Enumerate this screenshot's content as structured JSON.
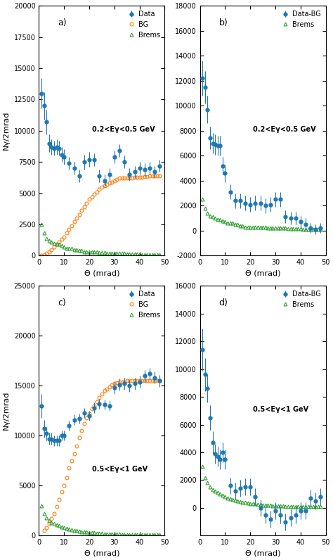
{
  "chart_data": [
    {
      "type": "scatter",
      "x_label": "Θ (mrad)",
      "y_label": "Nγ/2mrad",
      "xlim": [
        0,
        50
      ],
      "xticks": [
        0,
        10,
        20,
        30,
        40,
        50
      ],
      "ylim": [
        0,
        20000
      ],
      "yticks": [
        0,
        2500,
        5000,
        7500,
        10000,
        12500,
        15000,
        17500,
        20000
      ],
      "legend": "upper right",
      "annotations": [
        "a)",
        "0.2<Eγ<0.5 GeV"
      ],
      "series": [
        {
          "name": "Data",
          "marker": "filled circle",
          "x": [
            1,
            2,
            3,
            4,
            5,
            6,
            7,
            8,
            9,
            10,
            12,
            14,
            16,
            18,
            20,
            22,
            24,
            26,
            28,
            30,
            32,
            34,
            36,
            38,
            40,
            42,
            44,
            46,
            48
          ],
          "values": [
            13000,
            12000,
            10700,
            9000,
            8700,
            8600,
            8700,
            8600,
            8100,
            7900,
            7400,
            7000,
            6400,
            7500,
            7700,
            7700,
            6400,
            6000,
            6500,
            7900,
            8400,
            7500,
            6500,
            6700,
            7000,
            6900,
            7000,
            6700,
            7200
          ],
          "errors": [
            1200,
            1100,
            1000,
            700,
            600,
            600,
            600,
            600,
            600,
            600,
            500,
            500,
            500,
            600,
            600,
            500,
            500,
            500,
            500,
            500,
            500,
            500,
            500,
            500,
            500,
            500,
            500,
            500,
            500
          ]
        },
        {
          "name": "BG",
          "marker": "open circle",
          "x": [
            1,
            2,
            3,
            4,
            5,
            6,
            7,
            8,
            9,
            10,
            11,
            12,
            13,
            14,
            15,
            16,
            17,
            18,
            19,
            20,
            21,
            22,
            23,
            24,
            25,
            26,
            27,
            28,
            29,
            30,
            31,
            32,
            33,
            34,
            35,
            36,
            37,
            38,
            39,
            40,
            41,
            42,
            43,
            44,
            45,
            46,
            47,
            48
          ],
          "values": [
            50,
            100,
            200,
            300,
            500,
            700,
            900,
            1100,
            1300,
            1500,
            1800,
            2100,
            2400,
            2700,
            3000,
            3300,
            3600,
            3900,
            4200,
            4500,
            4700,
            4900,
            5100,
            5300,
            5500,
            5600,
            5700,
            5800,
            5900,
            6000,
            6100,
            6200,
            6200,
            6200,
            6200,
            6200,
            6200,
            6300,
            6300,
            6300,
            6300,
            6350,
            6350,
            6400,
            6400,
            6400,
            6400,
            6400
          ]
        },
        {
          "name": "Brems",
          "marker": "open triangle",
          "x": [
            1,
            2,
            3,
            4,
            5,
            6,
            7,
            8,
            9,
            10,
            11,
            12,
            13,
            14,
            15,
            16,
            17,
            18,
            19,
            20,
            21,
            22,
            23,
            24,
            25,
            26,
            27,
            28,
            29,
            30,
            31,
            32,
            33,
            34,
            35,
            36,
            37,
            38,
            39,
            40,
            41,
            42,
            43,
            44,
            45,
            46,
            47,
            48
          ],
          "values": [
            2500,
            1800,
            1400,
            1200,
            1100,
            1000,
            900,
            900,
            800,
            700,
            600,
            600,
            600,
            500,
            500,
            400,
            400,
            300,
            300,
            300,
            300,
            300,
            300,
            250,
            250,
            250,
            200,
            200,
            200,
            200,
            200,
            200,
            200,
            200,
            150,
            150,
            150,
            150,
            150,
            150,
            100,
            100,
            100,
            100,
            100,
            100,
            100,
            100
          ]
        }
      ]
    },
    {
      "type": "scatter",
      "x_label": "Θ (mrad)",
      "xlim": [
        0,
        50
      ],
      "xticks": [
        0,
        10,
        20,
        30,
        40,
        50
      ],
      "ylim": [
        -2000,
        18000
      ],
      "yticks": [
        -2000,
        0,
        2000,
        4000,
        6000,
        8000,
        10000,
        12000,
        14000,
        16000,
        18000
      ],
      "legend": "upper right",
      "annotations": [
        "b)",
        "0.2<Eγ<0.5 GeV"
      ],
      "series": [
        {
          "name": "Data-BG",
          "marker": "filled circle",
          "x": [
            1,
            2,
            3,
            4,
            5,
            6,
            7,
            8,
            9,
            10,
            12,
            14,
            16,
            18,
            20,
            22,
            24,
            26,
            28,
            30,
            32,
            34,
            36,
            38,
            40,
            42,
            44,
            46,
            48
          ],
          "values": [
            12200,
            11500,
            9700,
            7400,
            7000,
            6900,
            6800,
            6800,
            5200,
            4600,
            3100,
            2400,
            2400,
            2200,
            2100,
            2200,
            2200,
            2000,
            2100,
            2500,
            2500,
            1100,
            1000,
            1000,
            700,
            500,
            200,
            100,
            200
          ],
          "errors": [
            1400,
            1300,
            1100,
            900,
            800,
            800,
            800,
            800,
            700,
            700,
            600,
            600,
            600,
            600,
            600,
            600,
            600,
            600,
            600,
            600,
            600,
            500,
            500,
            500,
            500,
            500,
            400,
            400,
            400
          ]
        },
        {
          "name": "Brems",
          "marker": "open triangle",
          "x": [
            1,
            2,
            3,
            4,
            5,
            6,
            7,
            8,
            9,
            10,
            11,
            12,
            13,
            14,
            15,
            16,
            17,
            18,
            19,
            20,
            21,
            22,
            23,
            24,
            25,
            26,
            27,
            28,
            29,
            30,
            31,
            32,
            33,
            34,
            35,
            36,
            37,
            38,
            39,
            40,
            41,
            42,
            43,
            44,
            45,
            46,
            47,
            48
          ],
          "values": [
            2500,
            1800,
            1400,
            1200,
            1100,
            1000,
            900,
            900,
            800,
            700,
            600,
            600,
            600,
            500,
            500,
            400,
            400,
            300,
            300,
            300,
            300,
            300,
            300,
            250,
            250,
            250,
            200,
            200,
            200,
            200,
            200,
            200,
            200,
            200,
            150,
            150,
            150,
            150,
            150,
            150,
            100,
            100,
            100,
            100,
            100,
            100,
            100,
            100
          ]
        }
      ]
    },
    {
      "type": "scatter",
      "x_label": "Θ (mrad)",
      "y_label": "Nγ/2mrad",
      "xlim": [
        0,
        50
      ],
      "xticks": [
        0,
        10,
        20,
        30,
        40,
        50
      ],
      "ylim": [
        0,
        25000
      ],
      "yticks": [
        0,
        5000,
        10000,
        15000,
        20000,
        25000
      ],
      "legend": "upper right",
      "annotations": [
        "c)",
        "0.5<Eγ<1 GeV"
      ],
      "series": [
        {
          "name": "Data",
          "marker": "filled circle",
          "x": [
            1,
            2,
            3,
            4,
            5,
            6,
            7,
            8,
            9,
            10,
            12,
            14,
            16,
            18,
            20,
            22,
            24,
            26,
            28,
            30,
            32,
            34,
            36,
            38,
            40,
            42,
            44,
            46,
            48
          ],
          "values": [
            13000,
            10700,
            10200,
            9700,
            9700,
            9500,
            9500,
            9500,
            10000,
            10000,
            11000,
            11600,
            11700,
            12300,
            12000,
            12800,
            13200,
            13100,
            13000,
            14800,
            15100,
            15200,
            15000,
            15200,
            15400,
            16000,
            16200,
            15800,
            15500
          ],
          "errors": [
            1200,
            900,
            700,
            600,
            600,
            500,
            500,
            500,
            500,
            500,
            500,
            500,
            500,
            500,
            500,
            500,
            500,
            500,
            500,
            600,
            600,
            600,
            600,
            600,
            600,
            600,
            600,
            600,
            600
          ]
        },
        {
          "name": "BG",
          "marker": "open circle",
          "x": [
            2,
            3,
            4,
            5,
            6,
            7,
            8,
            9,
            10,
            11,
            12,
            13,
            14,
            15,
            16,
            17,
            18,
            19,
            20,
            21,
            22,
            23,
            24,
            25,
            26,
            27,
            28,
            29,
            30,
            31,
            32,
            33,
            34,
            35,
            36,
            37,
            38,
            39,
            40,
            41,
            42,
            43,
            44,
            45,
            46,
            47,
            48
          ],
          "values": [
            500,
            800,
            1200,
            1700,
            2200,
            2900,
            3600,
            4400,
            5000,
            5800,
            6800,
            7500,
            8200,
            9000,
            9800,
            10500,
            11200,
            11800,
            12200,
            12700,
            13000,
            13400,
            13800,
            14200,
            14500,
            14700,
            14900,
            15100,
            15200,
            15300,
            15400,
            15400,
            15400,
            15500,
            15500,
            15500,
            15500,
            15500,
            15500,
            15500,
            15500,
            15500,
            15500,
            15500,
            15500,
            15500,
            15500
          ]
        },
        {
          "name": "Brems",
          "marker": "open triangle",
          "x": [
            1,
            2,
            3,
            4,
            5,
            6,
            7,
            8,
            9,
            10,
            11,
            12,
            13,
            14,
            15,
            16,
            17,
            18,
            19,
            20,
            21,
            22,
            23,
            24,
            25,
            26,
            27,
            28,
            29,
            30,
            31,
            32,
            33,
            34,
            35,
            36,
            37,
            38,
            39,
            40,
            41,
            42,
            43,
            44,
            45,
            46,
            47,
            48
          ],
          "values": [
            3000,
            2200,
            1800,
            1500,
            1300,
            1200,
            1100,
            1000,
            900,
            800,
            700,
            650,
            600,
            550,
            500,
            450,
            400,
            380,
            350,
            320,
            300,
            280,
            260,
            240,
            220,
            200,
            190,
            180,
            170,
            160,
            150,
            140,
            130,
            120,
            110,
            100,
            100,
            90,
            90,
            90,
            80,
            80,
            80,
            80,
            80,
            80,
            80,
            80
          ]
        }
      ]
    },
    {
      "type": "scatter",
      "x_label": "Θ (mrad)",
      "xlim": [
        0,
        50
      ],
      "xticks": [
        0,
        10,
        20,
        30,
        40,
        50
      ],
      "ylim": [
        -2000,
        16000
      ],
      "yticks": [
        0,
        2000,
        4000,
        6000,
        8000,
        10000,
        12000,
        14000,
        16000
      ],
      "legend": "upper right",
      "annotations": [
        "d)",
        "0.5<Eγ<1 GeV"
      ],
      "series": [
        {
          "name": "Data-BG",
          "marker": "filled circle",
          "x": [
            1,
            2,
            3,
            4,
            5,
            6,
            7,
            8,
            9,
            10,
            12,
            14,
            16,
            18,
            20,
            22,
            24,
            26,
            28,
            30,
            32,
            34,
            36,
            38,
            40,
            42,
            44,
            46,
            48
          ],
          "values": [
            11400,
            9600,
            8600,
            6500,
            4700,
            3900,
            3700,
            3500,
            4000,
            3500,
            1600,
            1200,
            1400,
            1500,
            1500,
            800,
            0,
            -500,
            -800,
            -200,
            -500,
            -1000,
            -700,
            -500,
            -200,
            -200,
            700,
            500,
            800
          ],
          "errors": [
            1500,
            1200,
            1000,
            900,
            800,
            700,
            700,
            700,
            700,
            700,
            600,
            600,
            600,
            600,
            600,
            600,
            600,
            600,
            600,
            600,
            600,
            600,
            600,
            600,
            600,
            600,
            600,
            600,
            600
          ]
        },
        {
          "name": "Brems",
          "marker": "open triangle",
          "x": [
            1,
            2,
            3,
            4,
            5,
            6,
            7,
            8,
            9,
            10,
            11,
            12,
            13,
            14,
            15,
            16,
            17,
            18,
            19,
            20,
            21,
            22,
            23,
            24,
            25,
            26,
            27,
            28,
            29,
            30,
            31,
            32,
            33,
            34,
            35,
            36,
            37,
            38,
            39,
            40,
            41,
            42,
            43,
            44,
            45,
            46,
            47,
            48
          ],
          "values": [
            3000,
            2200,
            1800,
            1500,
            1300,
            1200,
            1100,
            1000,
            900,
            800,
            700,
            650,
            600,
            550,
            500,
            450,
            400,
            380,
            350,
            320,
            300,
            280,
            260,
            240,
            220,
            200,
            190,
            180,
            170,
            160,
            150,
            140,
            130,
            120,
            110,
            100,
            100,
            90,
            90,
            90,
            80,
            80,
            80,
            80,
            80,
            80,
            80,
            80
          ]
        }
      ]
    }
  ]
}
